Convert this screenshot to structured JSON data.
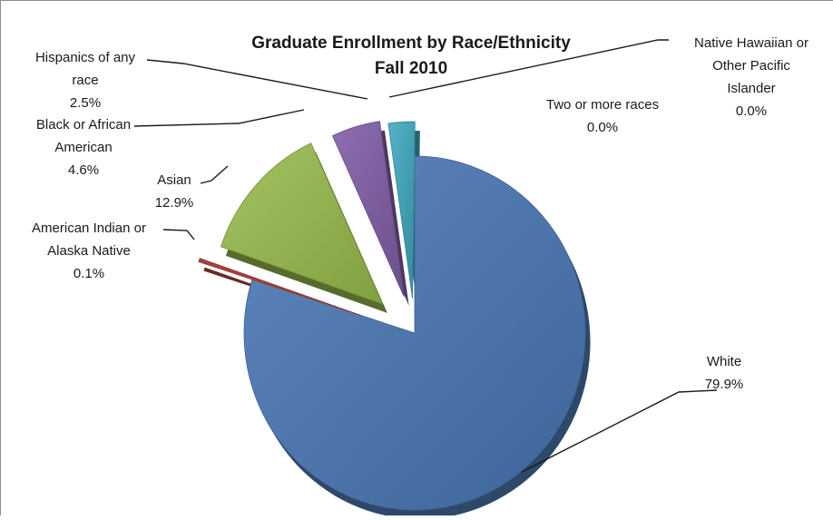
{
  "chart_data": {
    "type": "pie",
    "title_line1": "Graduate Enrollment by Race/Ethnicity",
    "title_line2": "Fall 2010",
    "exploded": true,
    "three_d": true,
    "slices": [
      {
        "key": "white",
        "lines": [
          "White"
        ],
        "value": 79.9,
        "pct_label": "79.9%",
        "color": "#4a74aa"
      },
      {
        "key": "aian",
        "lines": [
          "American Indian or",
          "Alaska Native"
        ],
        "value": 0.1,
        "pct_label": "0.1%",
        "color": "#a7403c"
      },
      {
        "key": "asian",
        "lines": [
          "Asian"
        ],
        "value": 12.9,
        "pct_label": "12.9%",
        "color": "#8dac49"
      },
      {
        "key": "black",
        "lines": [
          "Black or African",
          "American"
        ],
        "value": 4.6,
        "pct_label": "4.6%",
        "color": "#7b5b9e"
      },
      {
        "key": "hispanic",
        "lines": [
          "Hispanics of any",
          "race"
        ],
        "value": 2.5,
        "pct_label": "2.5%",
        "color": "#3c9bb0"
      },
      {
        "key": "nhpi",
        "lines": [
          "Native Hawaiian or",
          "Other Pacific",
          "Islander"
        ],
        "value": 0.0,
        "pct_label": "0.0%",
        "color": "#e68a2e"
      },
      {
        "key": "two_more",
        "lines": [
          "Two or more races"
        ],
        "value": 0.0,
        "pct_label": "0.0%",
        "color": "#5f81b5"
      }
    ]
  }
}
